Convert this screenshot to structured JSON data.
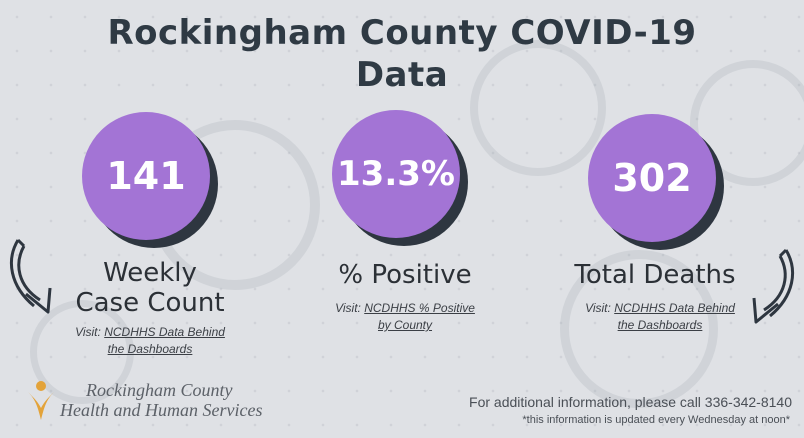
{
  "title": "Rockingham County COVID-19 Data",
  "stats": [
    {
      "value": "141",
      "label_line1": "Weekly",
      "label_line2": "Case Count",
      "visit_prefix": "Visit:",
      "link_line1": "NCDHHS Data Behind",
      "link_line2": "the Dashboards"
    },
    {
      "value": "13.3%",
      "label_line1": "% Positive",
      "label_line2": "",
      "visit_prefix": "Visit:",
      "link_line1": "NCDHHS % Positive",
      "link_line2": "by County"
    },
    {
      "value": "302",
      "label_line1": "Total Deaths",
      "label_line2": "",
      "visit_prefix": "Visit:",
      "link_line1": "NCDHHS Data Behind",
      "link_line2": "the Dashboards"
    }
  ],
  "logo": {
    "line1": "Rockingham County",
    "line2": "Health and Human Services"
  },
  "footer": {
    "contact": "For additional information, please call 336-342-8140",
    "note": "*this information is updated every Wednesday at noon*"
  },
  "colors": {
    "circle": "#a374d5",
    "shadow": "#2e3640",
    "title": "#2f3a44"
  }
}
